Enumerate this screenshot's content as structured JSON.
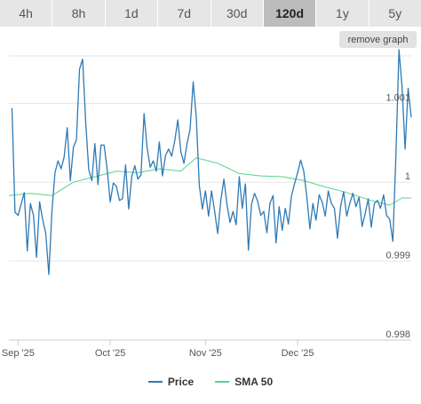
{
  "range_tabs": [
    {
      "label": "4h",
      "active": false
    },
    {
      "label": "8h",
      "active": false
    },
    {
      "label": "1d",
      "active": false
    },
    {
      "label": "7d",
      "active": false
    },
    {
      "label": "30d",
      "active": false
    },
    {
      "label": "120d",
      "active": true
    },
    {
      "label": "1y",
      "active": false
    },
    {
      "label": "5y",
      "active": false
    }
  ],
  "remove_graph_label": "remove graph",
  "colors": {
    "price": "#2f7ab5",
    "sma": "#55d38c",
    "grid": "#e6e6e6"
  },
  "chart_data": {
    "type": "line",
    "ylim": [
      0.998,
      1.0016
    ],
    "y_ticks": [
      {
        "value": 0.998,
        "label": "0.998"
      },
      {
        "value": 0.999,
        "label": "0.999"
      },
      {
        "value": 1.0,
        "label": "1"
      },
      {
        "value": 1.001,
        "label": "1.001"
      }
    ],
    "x_range": [
      "2025-08-29",
      "2026-01-07"
    ],
    "x_ticks": [
      {
        "date": "2025-09-01",
        "label": "Sep '25"
      },
      {
        "date": "2025-10-01",
        "label": "Oct '25"
      },
      {
        "date": "2025-11-01",
        "label": "Nov '25"
      },
      {
        "date": "2025-12-01",
        "label": "Dec '25"
      }
    ],
    "series": [
      {
        "name": "Price",
        "color": "#2f7ab5",
        "points": [
          [
            "2025-08-30",
            1.00094
          ],
          [
            "2025-08-31",
            0.99962
          ],
          [
            "2025-09-01",
            0.99958
          ],
          [
            "2025-09-02",
            0.99972
          ],
          [
            "2025-09-03",
            0.99987
          ],
          [
            "2025-09-04",
            0.99913
          ],
          [
            "2025-09-05",
            0.99973
          ],
          [
            "2025-09-06",
            0.99958
          ],
          [
            "2025-09-07",
            0.99905
          ],
          [
            "2025-09-08",
            0.99975
          ],
          [
            "2025-09-09",
            0.99953
          ],
          [
            "2025-09-10",
            0.99935
          ],
          [
            "2025-09-11",
            0.99883
          ],
          [
            "2025-09-12",
            0.99962
          ],
          [
            "2025-09-13",
            1.00012
          ],
          [
            "2025-09-14",
            1.00027
          ],
          [
            "2025-09-15",
            1.00017
          ],
          [
            "2025-09-16",
            1.00032
          ],
          [
            "2025-09-17",
            1.00069
          ],
          [
            "2025-09-18",
            1.00002
          ],
          [
            "2025-09-19",
            1.00044
          ],
          [
            "2025-09-20",
            1.00054
          ],
          [
            "2025-09-21",
            1.00143
          ],
          [
            "2025-09-22",
            1.00156
          ],
          [
            "2025-09-23",
            1.00076
          ],
          [
            "2025-09-24",
            1.00016
          ],
          [
            "2025-09-25",
            1.00002
          ],
          [
            "2025-09-26",
            1.00049
          ],
          [
            "2025-09-27",
            0.99997
          ],
          [
            "2025-09-28",
            1.00047
          ],
          [
            "2025-09-29",
            1.00047
          ],
          [
            "2025-09-30",
            1.00016
          ],
          [
            "2025-10-01",
            0.99975
          ],
          [
            "2025-10-02",
            0.99999
          ],
          [
            "2025-10-03",
            0.99995
          ],
          [
            "2025-10-04",
            0.99977
          ],
          [
            "2025-10-05",
            0.99979
          ],
          [
            "2025-10-06",
            1.00022
          ],
          [
            "2025-10-07",
            0.99966
          ],
          [
            "2025-10-08",
            1.00007
          ],
          [
            "2025-10-09",
            1.00021
          ],
          [
            "2025-10-10",
            1.00004
          ],
          [
            "2025-10-11",
            1.00009
          ],
          [
            "2025-10-12",
            1.00087
          ],
          [
            "2025-10-13",
            1.00044
          ],
          [
            "2025-10-14",
            1.00019
          ],
          [
            "2025-10-15",
            1.00027
          ],
          [
            "2025-10-16",
            1.00014
          ],
          [
            "2025-10-17",
            1.00051
          ],
          [
            "2025-10-18",
            1.00008
          ],
          [
            "2025-10-19",
            1.00034
          ],
          [
            "2025-10-20",
            1.00042
          ],
          [
            "2025-10-21",
            1.00033
          ],
          [
            "2025-10-22",
            1.00052
          ],
          [
            "2025-10-23",
            1.00079
          ],
          [
            "2025-10-24",
            1.00039
          ],
          [
            "2025-10-25",
            1.00024
          ],
          [
            "2025-10-26",
            1.00049
          ],
          [
            "2025-10-27",
            1.00067
          ],
          [
            "2025-10-28",
            1.00127
          ],
          [
            "2025-10-29",
            1.00084
          ],
          [
            "2025-10-30",
            0.99996
          ],
          [
            "2025-10-31",
            0.99966
          ],
          [
            "2025-11-01",
            0.99989
          ],
          [
            "2025-11-02",
            0.99957
          ],
          [
            "2025-11-03",
            0.99989
          ],
          [
            "2025-11-04",
            0.99963
          ],
          [
            "2025-11-05",
            0.99935
          ],
          [
            "2025-11-06",
            0.99977
          ],
          [
            "2025-11-07",
            1.00004
          ],
          [
            "2025-11-08",
            0.99972
          ],
          [
            "2025-11-09",
            0.99949
          ],
          [
            "2025-11-10",
            0.99963
          ],
          [
            "2025-11-11",
            0.99946
          ],
          [
            "2025-11-12",
            1.00007
          ],
          [
            "2025-11-13",
            0.99967
          ],
          [
            "2025-11-14",
            0.99998
          ],
          [
            "2025-11-15",
            0.99914
          ],
          [
            "2025-11-16",
            0.99972
          ],
          [
            "2025-11-17",
            0.99986
          ],
          [
            "2025-11-18",
            0.99976
          ],
          [
            "2025-11-19",
            0.99958
          ],
          [
            "2025-11-20",
            0.99963
          ],
          [
            "2025-11-21",
            0.99936
          ],
          [
            "2025-11-22",
            0.99973
          ],
          [
            "2025-11-23",
            0.99983
          ],
          [
            "2025-11-24",
            0.99923
          ],
          [
            "2025-11-25",
            0.99969
          ],
          [
            "2025-11-26",
            0.99939
          ],
          [
            "2025-11-27",
            0.99967
          ],
          [
            "2025-11-28",
            0.99947
          ],
          [
            "2025-11-29",
            0.99982
          ],
          [
            "2025-11-30",
            0.99998
          ],
          [
            "2025-12-01",
            1.00012
          ],
          [
            "2025-12-02",
            1.00028
          ],
          [
            "2025-12-03",
            1.00014
          ],
          [
            "2025-12-04",
            0.99982
          ],
          [
            "2025-12-05",
            0.99941
          ],
          [
            "2025-12-06",
            0.99973
          ],
          [
            "2025-12-07",
            0.99952
          ],
          [
            "2025-12-08",
            0.99984
          ],
          [
            "2025-12-09",
            0.99975
          ],
          [
            "2025-12-10",
            0.99957
          ],
          [
            "2025-12-11",
            0.99989
          ],
          [
            "2025-12-12",
            0.99973
          ],
          [
            "2025-12-13",
            0.99967
          ],
          [
            "2025-12-14",
            0.99929
          ],
          [
            "2025-12-15",
            0.99969
          ],
          [
            "2025-12-16",
            0.99988
          ],
          [
            "2025-12-17",
            0.99957
          ],
          [
            "2025-12-18",
            0.99973
          ],
          [
            "2025-12-19",
            0.99986
          ],
          [
            "2025-12-20",
            0.99969
          ],
          [
            "2025-12-21",
            0.99981
          ],
          [
            "2025-12-22",
            0.99944
          ],
          [
            "2025-12-23",
            0.9996
          ],
          [
            "2025-12-24",
            0.99979
          ],
          [
            "2025-12-25",
            0.99943
          ],
          [
            "2025-12-26",
            0.99973
          ],
          [
            "2025-12-27",
            0.99977
          ],
          [
            "2025-12-28",
            0.99967
          ],
          [
            "2025-12-29",
            0.99984
          ],
          [
            "2025-12-30",
            0.99958
          ],
          [
            "2025-12-31",
            0.99953
          ],
          [
            "2026-01-01",
            0.99925
          ],
          [
            "2026-01-02",
            1.00032
          ],
          [
            "2026-01-03",
            1.00168
          ],
          [
            "2026-01-04",
            1.00122
          ],
          [
            "2026-01-05",
            1.00042
          ],
          [
            "2026-01-06",
            1.00119
          ],
          [
            "2026-01-07",
            1.00082
          ]
        ]
      },
      {
        "name": "SMA 50",
        "color": "#55d38c",
        "points": [
          [
            "2025-08-29",
            0.99983
          ],
          [
            "2025-09-05",
            0.99986
          ],
          [
            "2025-09-12",
            0.99983
          ],
          [
            "2025-09-19",
            1.0
          ],
          [
            "2025-09-26",
            1.00007
          ],
          [
            "2025-10-03",
            1.00014
          ],
          [
            "2025-10-10",
            1.00012
          ],
          [
            "2025-10-17",
            1.00017
          ],
          [
            "2025-10-24",
            1.00014
          ],
          [
            "2025-10-29",
            1.00031
          ],
          [
            "2025-11-05",
            1.00024
          ],
          [
            "2025-11-12",
            1.00011
          ],
          [
            "2025-11-19",
            1.00008
          ],
          [
            "2025-11-26",
            1.00007
          ],
          [
            "2025-12-03",
            1.00002
          ],
          [
            "2025-12-10",
            0.99994
          ],
          [
            "2025-12-17",
            0.99987
          ],
          [
            "2025-12-24",
            0.99978
          ],
          [
            "2025-12-31",
            0.99971
          ],
          [
            "2026-01-04",
            0.9998
          ],
          [
            "2026-01-07",
            0.9998
          ]
        ]
      }
    ],
    "grid": true,
    "legend": "bottom-center"
  }
}
